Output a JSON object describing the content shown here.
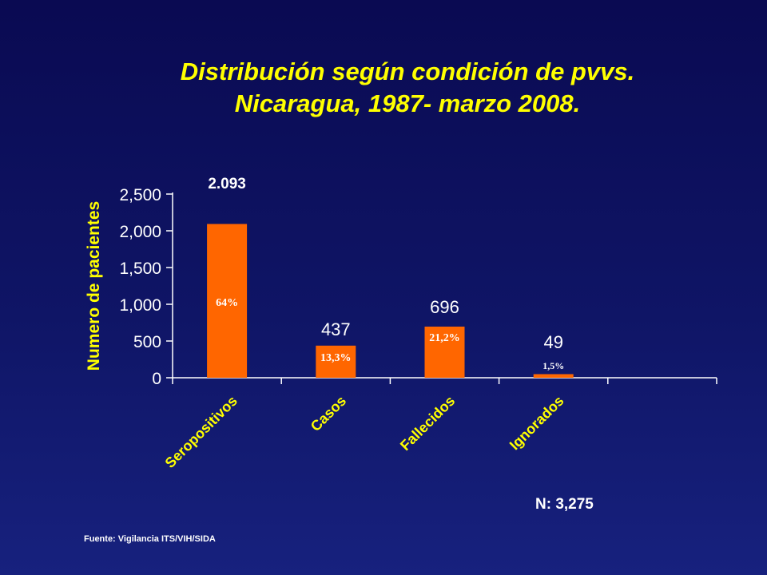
{
  "title": {
    "line1": "Distribución según condición de pvvs.",
    "line2": "Nicaragua, 1987- marzo 2008."
  },
  "chart_data": {
    "type": "bar",
    "title": "Distribución según condición de pvvs. Nicaragua, 1987- marzo 2008.",
    "xlabel": "",
    "ylabel": "Numero de pacientes",
    "ylim": [
      0,
      2500
    ],
    "yticks": [
      0,
      500,
      1000,
      1500,
      2000,
      2500
    ],
    "ytick_labels": [
      "0",
      "500",
      "1,000",
      "1,500",
      "2,000",
      "2,500"
    ],
    "categories": [
      "Seropositivos",
      "Casos",
      "Fallecidos",
      "Ignorados"
    ],
    "values": [
      2093,
      437,
      696,
      49
    ],
    "value_labels": [
      "2.093",
      "437",
      "696",
      "49"
    ],
    "percent_labels": [
      "64%",
      "13,3%",
      "21,2%",
      "1,5%"
    ],
    "grid": false,
    "legend": "none"
  },
  "colors": {
    "bar": "#ff6600",
    "axis_label": "#ffff00",
    "tick_label": "#ffffff",
    "percent_label": "#ffffff"
  },
  "total": "N: 3,275",
  "source": "Fuente: Vigilancia ITS/VIH/SIDA"
}
